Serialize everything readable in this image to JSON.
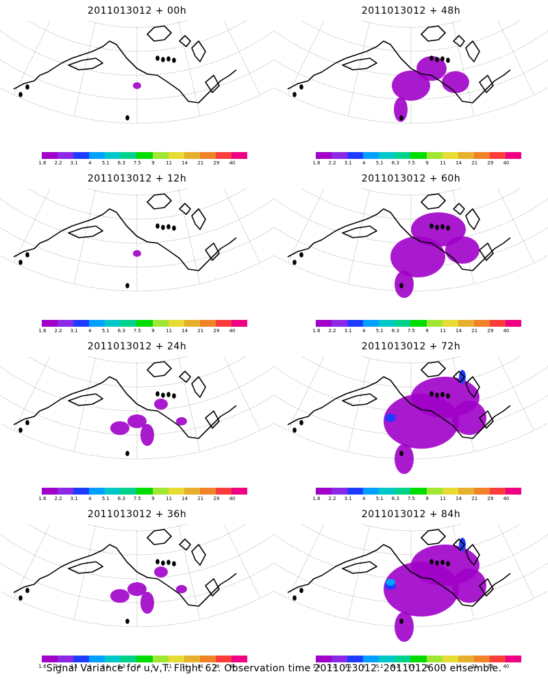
{
  "panels": [
    {
      "title": "2011013012 + 00h",
      "intensity": 1
    },
    {
      "title": "2011013012 + 48h",
      "intensity": 3
    },
    {
      "title": "2011013012 + 12h",
      "intensity": 1
    },
    {
      "title": "2011013012 + 60h",
      "intensity": 4
    },
    {
      "title": "2011013012 + 24h",
      "intensity": 2
    },
    {
      "title": "2011013012 + 72h",
      "intensity": 5
    },
    {
      "title": "2011013012 + 36h",
      "intensity": 2
    },
    {
      "title": "2011013012 + 84h",
      "intensity": 6
    }
  ],
  "colorbar": {
    "labels": [
      "1.6",
      "2.2",
      "3.1",
      "4",
      "5.1",
      "6.3",
      "7.5",
      "9",
      "11",
      "14",
      "21",
      "29",
      "40"
    ],
    "colors": [
      "#a000c8",
      "#8c28e6",
      "#1e3cff",
      "#00a0ff",
      "#00c8c8",
      "#00d28c",
      "#00dc00",
      "#a0e632",
      "#e6dc32",
      "#e6af2d",
      "#f08228",
      "#fa3c3c",
      "#f00082"
    ]
  },
  "footer": "Signal Variance for u,v,T. Flight 62. Observation time 2011013012. 2011012600 ensemble."
}
